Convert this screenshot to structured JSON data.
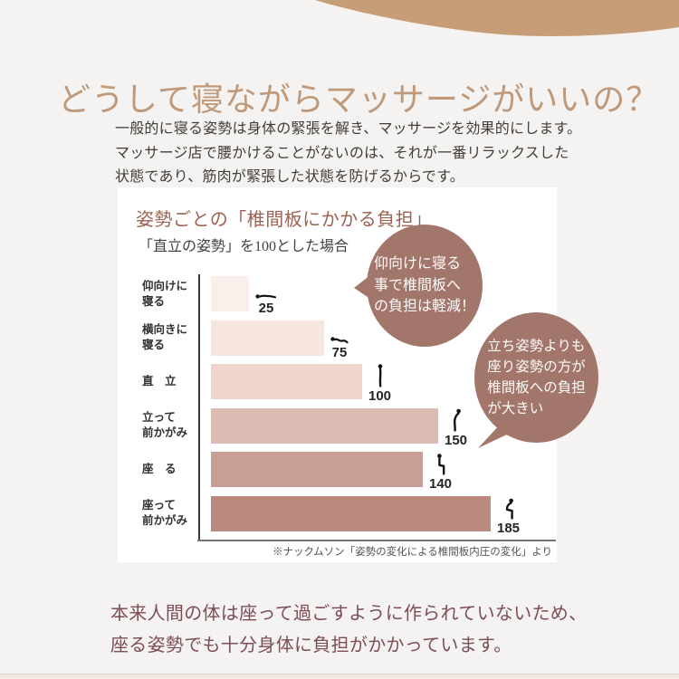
{
  "page": {
    "title": "どうして寝ながらマッサージがいいの？",
    "intro": "一般的に寝る姿勢は身体の緊張を解き、マッサージを効果的にします。\nマッサージ店で腰かけることがないのは、それが一番リラックスした\n状態であり、筋肉が緊張した状態を防げるからです。",
    "conclusion": "本来人間の体は座って過ごすように作られていないため、\n座る姿勢でも十分身体に負担がかかっています。"
  },
  "chart_card": {
    "title": "姿勢ごとの「椎間板にかかる負担」",
    "subtitle": "「直立の姿勢」を100とした場合",
    "footnote": "※ナックムソン「姿勢の変化による椎間板内圧の変化」より"
  },
  "chart_data": {
    "type": "bar",
    "orientation": "horizontal",
    "title": "姿勢ごとの「椎間板にかかる負担」",
    "subtitle": "「直立の姿勢」を100とした場合",
    "categories": [
      "仰向けに寝る",
      "横向きに寝る",
      "直立",
      "立って前かがみ",
      "座る",
      "座って前かがみ"
    ],
    "category_display_labels": [
      "仰向けに\n寝る",
      "横向きに\n寝る",
      "直　立",
      "立って\n前かがみ",
      "座　る",
      "座って\n前かがみ"
    ],
    "values": [
      25,
      75,
      100,
      150,
      140,
      185
    ],
    "bar_colors": [
      "#f9f0ec",
      "#f7e5e0",
      "#efd5cc",
      "#dcbcb2",
      "#c89f96",
      "#ba8a7e"
    ],
    "icons": [
      "person-supine-icon",
      "person-sidelying-icon",
      "person-standing-icon",
      "person-standing-bent-icon",
      "person-sitting-icon",
      "person-sitting-bent-icon"
    ],
    "xlim": [
      0,
      200
    ],
    "grid": false,
    "value_labels": true,
    "footnote": "※ナックムソン「姿勢の変化による椎間板内圧の変化」より"
  },
  "bubbles": [
    {
      "text": "仰向けに寝る\n事で椎間板へ\nの負担は軽減！",
      "color": "#a3766b",
      "tail_direction": "left"
    },
    {
      "text": "立ち姿勢よりも\n座り姿勢の方が\n椎間板への負担\nが大きい",
      "color": "#a3766b",
      "tail_direction": "bottom-left"
    }
  ],
  "colors": {
    "page_background": "#f4f3f1",
    "corner_curve": "#c69d76",
    "main_title_text": "#bf9979",
    "intro_text": "#413d3a",
    "card_background": "#ffffff",
    "chart_title_text": "#9c6353",
    "bubble_background": "#a3766b",
    "bubble_text": "#fdfbfa",
    "conclusion_text": "#7d4d5a"
  }
}
